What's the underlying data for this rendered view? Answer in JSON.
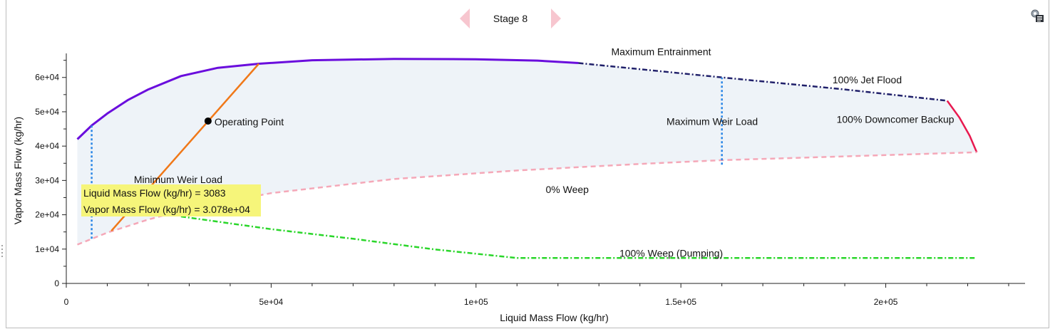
{
  "nav": {
    "stage_label": "Stage 8",
    "prev_icon": "left-arrow-icon",
    "next_icon": "right-arrow-icon",
    "corner_icon": "chart-settings-icon"
  },
  "chart_data": {
    "type": "line",
    "title": "",
    "xlabel": "Liquid Mass Flow (kg/hr)",
    "ylabel": "Vapor Mass Flow (kg/hr)",
    "xlim": [
      0,
      234000
    ],
    "ylim": [
      0,
      67000
    ],
    "x_ticks": [
      0,
      50000,
      100000,
      150000,
      200000
    ],
    "x_tick_labels": [
      "0",
      "5e+04",
      "1e+05",
      "1.5e+05",
      "2e+05"
    ],
    "y_ticks": [
      0,
      10000,
      20000,
      30000,
      40000,
      50000,
      60000
    ],
    "y_tick_labels": [
      "0",
      "1e+04",
      "2e+04",
      "3e+04",
      "4e+04",
      "5e+04",
      "6e+04"
    ],
    "series": [
      {
        "name": "Maximum Entrainment",
        "color": "#6a0ddd",
        "style": "solid",
        "x": [
          2700,
          6200,
          10000,
          15000,
          20000,
          28000,
          37000,
          47000,
          60000,
          80000,
          100000,
          115000,
          125000
        ],
        "y": [
          42000,
          46000,
          49500,
          53400,
          56500,
          60400,
          62800,
          64000,
          65000,
          65400,
          65300,
          64900,
          64200
        ]
      },
      {
        "name": "100% Jet Flood",
        "color": "#20206a",
        "style": "dashdot",
        "x": [
          125000,
          160000,
          190000,
          215000
        ],
        "y": [
          64200,
          60000,
          56500,
          53200
        ]
      },
      {
        "name": "100% Downcomer Backup",
        "color": "#e8194f",
        "style": "solid",
        "x": [
          215000,
          218000,
          220500,
          222200
        ],
        "y": [
          53200,
          48300,
          43000,
          38200
        ]
      },
      {
        "name": "0% Weep",
        "color": "#f5a8b8",
        "style": "dashed",
        "x": [
          2700,
          10000,
          20000,
          30000,
          50000,
          80000,
          110000,
          140000,
          160000,
          190000,
          222200
        ],
        "y": [
          11300,
          14800,
          18600,
          21800,
          26300,
          30400,
          32900,
          34800,
          35900,
          37000,
          38200
        ]
      },
      {
        "name": "100% Weep (Dumping)",
        "color": "#2ad62a",
        "style": "dashdot",
        "x": [
          28000,
          50000,
          70000,
          90000,
          110000,
          222200
        ],
        "y": [
          19500,
          15800,
          13000,
          9900,
          7400,
          7400
        ]
      },
      {
        "name": "Minimum Weir Load",
        "color": "#2a86e6",
        "style": "dotted",
        "x": [
          6200,
          6200
        ],
        "y": [
          13000,
          46000
        ]
      },
      {
        "name": "Maximum Weir Load",
        "color": "#2a86e6",
        "style": "dotted",
        "x": [
          160000,
          160000
        ],
        "y": [
          34600,
          60000
        ]
      },
      {
        "name": "Operating Line",
        "color": "#f07818",
        "style": "solid",
        "x": [
          11000,
          47000
        ],
        "y": [
          15300,
          64000
        ]
      }
    ],
    "operating_point": {
      "label": "Operating Point",
      "x": 34600,
      "y": 47300
    },
    "annotations": [
      {
        "text": "Maximum Entrainment",
        "x": 133000,
        "y": 66500
      },
      {
        "text": "100% Jet Flood",
        "x": 187000,
        "y": 58300
      },
      {
        "text": "100% Downcomer Backup",
        "x": 188000,
        "y": 46800
      },
      {
        "text": "Maximum Weir Load",
        "x": 146500,
        "y": 46200
      },
      {
        "text": "Minimum Weir Load",
        "x": 16500,
        "y": 29200
      },
      {
        "text": "0% Weep",
        "x": 117000,
        "y": 26300
      },
      {
        "text": "100% Weep (Dumping)",
        "x": 135000,
        "y": 7800
      }
    ],
    "region_fill": "#eef3f8",
    "tooltip": {
      "lines": [
        "Liquid Mass Flow (kg/hr) = 3083",
        "Vapor Mass Flow (kg/hr) = 3.078e+04"
      ]
    }
  }
}
